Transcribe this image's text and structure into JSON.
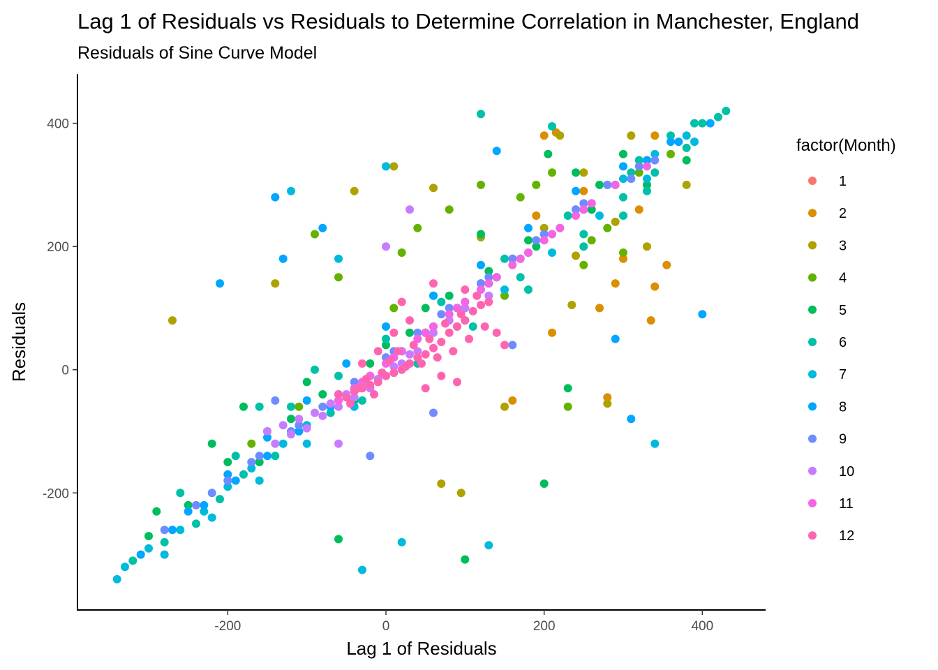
{
  "chart_data": {
    "type": "scatter",
    "title": "Lag 1 of Residuals vs Residuals to Determine Correlation in Manchester, England",
    "subtitle": "Residuals of Sine Curve Model",
    "xlabel": "Lag 1 of Residuals",
    "ylabel": "Residuals",
    "xlim": [
      -390,
      480
    ],
    "ylim": [
      -390,
      480
    ],
    "xticks": [
      -200,
      0,
      200,
      400
    ],
    "yticks": [
      -200,
      0,
      200,
      400
    ],
    "x_tick_labels": [
      "-200",
      "0",
      "200",
      "400"
    ],
    "y_tick_labels": [
      "-200",
      "0",
      "200",
      "400"
    ],
    "grid": false,
    "legend": {
      "title": "factor(Month)",
      "position": "right",
      "entries": [
        {
          "label": "1",
          "color": "#F8766D"
        },
        {
          "label": "2",
          "color": "#DB8E00"
        },
        {
          "label": "3",
          "color": "#AEA200"
        },
        {
          "label": "4",
          "color": "#64B200"
        },
        {
          "label": "5",
          "color": "#00BD5C"
        },
        {
          "label": "6",
          "color": "#00C1A7"
        },
        {
          "label": "7",
          "color": "#00BADE"
        },
        {
          "label": "8",
          "color": "#00A6FF"
        },
        {
          "label": "9",
          "color": "#6E8CFF"
        },
        {
          "label": "10",
          "color": "#C77CFF"
        },
        {
          "label": "11",
          "color": "#F564E3"
        },
        {
          "label": "12",
          "color": "#FF64B0"
        }
      ]
    },
    "series": [
      {
        "name": "1",
        "color": "#F8766D",
        "x": [],
        "y": []
      },
      {
        "name": "2",
        "color": "#DB8E00",
        "x": [
          200,
          215,
          190,
          290,
          270,
          340,
          335,
          160,
          280,
          210,
          320,
          250,
          300,
          355,
          340
        ],
        "y": [
          380,
          385,
          250,
          140,
          100,
          135,
          80,
          -50,
          -45,
          60,
          260,
          290,
          180,
          170,
          380
        ]
      },
      {
        "name": "3",
        "color": "#AEA200",
        "x": [
          -270,
          -140,
          60,
          120,
          220,
          235,
          280,
          95,
          70,
          150,
          250,
          310,
          330,
          380,
          200,
          260,
          -40,
          10,
          240,
          290
        ],
        "y": [
          80,
          140,
          295,
          215,
          380,
          105,
          -55,
          -200,
          -185,
          -60,
          320,
          380,
          200,
          300,
          230,
          260,
          290,
          330,
          185,
          240
        ]
      },
      {
        "name": "4",
        "color": "#64B200",
        "x": [
          -170,
          -110,
          -60,
          10,
          40,
          80,
          150,
          190,
          230,
          250,
          280,
          320,
          360,
          -90,
          20,
          120,
          170,
          210,
          260,
          300
        ],
        "y": [
          -120,
          -60,
          150,
          100,
          230,
          260,
          120,
          300,
          -60,
          170,
          230,
          320,
          350,
          220,
          190,
          300,
          280,
          320,
          210,
          190
        ]
      },
      {
        "name": "5",
        "color": "#00BD5C",
        "x": [
          -300,
          -250,
          -200,
          -150,
          -120,
          -80,
          -20,
          30,
          80,
          130,
          180,
          205,
          240,
          270,
          300,
          -220,
          -180,
          -100,
          0,
          60,
          100,
          140,
          190,
          260,
          330,
          380,
          120,
          50,
          -40,
          -60,
          200,
          230,
          -290,
          -160,
          100
        ],
        "y": [
          -270,
          -220,
          -150,
          -100,
          -80,
          -40,
          10,
          60,
          120,
          160,
          210,
          350,
          320,
          300,
          350,
          -120,
          -60,
          -20,
          40,
          120,
          100,
          150,
          200,
          260,
          300,
          340,
          220,
          100,
          -50,
          -275,
          -185,
          -30,
          -230,
          -150,
          -308
        ]
      },
      {
        "name": "6",
        "color": "#00C1A7",
        "x": [
          -320,
          -280,
          -240,
          -210,
          -180,
          -140,
          -110,
          -70,
          -30,
          10,
          50,
          90,
          120,
          160,
          200,
          240,
          280,
          320,
          360,
          400,
          430,
          420,
          380,
          340,
          300,
          -260,
          -190,
          -120,
          -60,
          20,
          100,
          170,
          250,
          330,
          -160,
          -90,
          0,
          70,
          150,
          230,
          310,
          390,
          300,
          250,
          180,
          110,
          40,
          -30,
          120,
          210
        ],
        "y": [
          -310,
          -280,
          -250,
          -210,
          -170,
          -140,
          -100,
          -70,
          -20,
          20,
          60,
          100,
          140,
          180,
          220,
          260,
          300,
          340,
          380,
          400,
          420,
          410,
          360,
          320,
          280,
          -200,
          -140,
          -60,
          -10,
          30,
          80,
          150,
          220,
          290,
          -60,
          0,
          50,
          110,
          180,
          250,
          320,
          400,
          250,
          200,
          130,
          70,
          10,
          -50,
          415,
          395
        ]
      },
      {
        "name": "7",
        "color": "#00BADE",
        "x": [
          -330,
          -300,
          -260,
          -230,
          -200,
          -170,
          -130,
          -100,
          -60,
          -20,
          20,
          60,
          100,
          140,
          180,
          220,
          260,
          300,
          340,
          380,
          -340,
          -280,
          -220,
          -160,
          -100,
          -40,
          30,
          90,
          150,
          210,
          270,
          330,
          390,
          -120,
          -60,
          0,
          130,
          340,
          20,
          -30
        ],
        "y": [
          -320,
          -290,
          -260,
          -230,
          -190,
          -160,
          -120,
          -90,
          -50,
          -10,
          30,
          70,
          110,
          150,
          190,
          230,
          270,
          310,
          350,
          380,
          -340,
          -300,
          -240,
          -180,
          -120,
          -60,
          10,
          70,
          130,
          190,
          250,
          310,
          370,
          290,
          180,
          330,
          -285,
          -120,
          -280,
          -325
        ]
      },
      {
        "name": "8",
        "color": "#00A6FF",
        "x": [
          -310,
          -270,
          -230,
          -190,
          -150,
          -110,
          -70,
          -30,
          10,
          50,
          90,
          130,
          170,
          210,
          250,
          290,
          330,
          370,
          410,
          -250,
          -200,
          -150,
          -100,
          -50,
          0,
          60,
          120,
          180,
          240,
          300,
          360,
          -140,
          140,
          310,
          400,
          290,
          -210,
          -130,
          -80
        ],
        "y": [
          -300,
          -260,
          -220,
          -180,
          -140,
          -100,
          -60,
          -20,
          20,
          60,
          100,
          140,
          180,
          220,
          260,
          300,
          340,
          370,
          400,
          -230,
          -170,
          -110,
          -50,
          10,
          70,
          120,
          170,
          230,
          290,
          330,
          370,
          280,
          355,
          -80,
          90,
          50,
          140,
          180,
          230
        ]
      },
      {
        "name": "9",
        "color": "#6E8CFF",
        "x": [
          -280,
          -240,
          -200,
          -160,
          -120,
          -80,
          -40,
          0,
          40,
          80,
          120,
          160,
          200,
          240,
          280,
          320,
          -220,
          -170,
          -110,
          -60,
          10,
          70,
          130,
          190,
          250,
          310,
          340,
          -140,
          -20,
          60,
          160
        ],
        "y": [
          -260,
          -220,
          -180,
          -140,
          -100,
          -60,
          -20,
          20,
          60,
          100,
          140,
          180,
          220,
          260,
          300,
          330,
          -200,
          -150,
          -90,
          -40,
          30,
          90,
          150,
          210,
          270,
          310,
          340,
          -50,
          -140,
          -70,
          40
        ]
      },
      {
        "name": "10",
        "color": "#C77CFF",
        "x": [
          -140,
          -120,
          -100,
          -80,
          -60,
          -40,
          -20,
          0,
          20,
          40,
          -130,
          -110,
          -90,
          -70,
          -50,
          -30,
          -10,
          10,
          30,
          60,
          80,
          100,
          130,
          -150,
          -60,
          0,
          30
        ],
        "y": [
          -120,
          -105,
          -95,
          -75,
          -60,
          -45,
          -30,
          -10,
          10,
          30,
          -90,
          -80,
          -70,
          -55,
          -40,
          -25,
          -15,
          5,
          25,
          60,
          80,
          100,
          120,
          -100,
          -120,
          200,
          260
        ]
      },
      {
        "name": "11",
        "color": "#F564E3",
        "x": [
          -40,
          -20,
          0,
          20,
          40,
          60,
          80,
          100,
          120,
          140,
          160,
          180,
          200,
          220,
          240,
          260,
          -60,
          -30,
          10,
          50,
          90,
          130,
          170,
          210,
          250,
          290,
          330
        ],
        "y": [
          -30,
          -10,
          10,
          30,
          50,
          70,
          90,
          110,
          130,
          150,
          170,
          190,
          210,
          230,
          250,
          270,
          -50,
          -20,
          20,
          60,
          100,
          140,
          180,
          220,
          260,
          300,
          330
        ]
      },
      {
        "name": "12",
        "color": "#FF64B0",
        "x": [
          -60,
          -50,
          -40,
          -30,
          -20,
          -10,
          0,
          10,
          20,
          30,
          40,
          50,
          60,
          70,
          80,
          90,
          100,
          110,
          120,
          130,
          -45,
          -35,
          -25,
          -15,
          -5,
          5,
          15,
          25,
          35,
          45,
          55,
          65,
          75,
          85,
          95,
          105,
          115,
          125,
          140,
          150,
          90,
          70,
          50,
          30,
          10,
          -10,
          -30,
          20,
          60,
          100
        ],
        "y": [
          -40,
          -45,
          -35,
          -30,
          -25,
          -20,
          -10,
          -5,
          0,
          10,
          20,
          25,
          35,
          45,
          60,
          70,
          80,
          95,
          105,
          110,
          -55,
          -30,
          -15,
          -40,
          -5,
          15,
          30,
          5,
          40,
          10,
          50,
          20,
          75,
          30,
          90,
          50,
          120,
          70,
          60,
          40,
          -20,
          -10,
          -30,
          80,
          60,
          30,
          10,
          110,
          140,
          130
        ]
      }
    ]
  }
}
